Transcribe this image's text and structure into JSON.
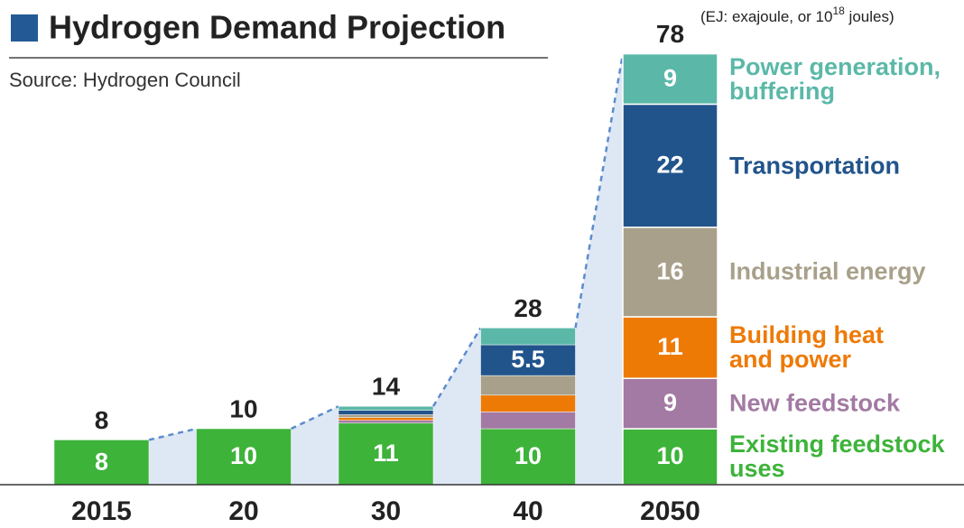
{
  "chart_data": {
    "type": "stacked_bar",
    "title": "Hydrogen Demand Projection",
    "subtitle": "Source: Hydrogen Council",
    "unit_note": {
      "prefix": "(EJ: exajoule, or 10",
      "sup": "18",
      "suffix": " joules)"
    },
    "categories": [
      "2015",
      "20",
      "30",
      "40",
      "2050"
    ],
    "totals": [
      8,
      10,
      14,
      28,
      78
    ],
    "ylim": [
      0,
      80
    ],
    "series": [
      {
        "name": "Existing feedstock uses",
        "color": "#3db33a",
        "values": [
          8,
          10,
          11,
          10,
          10
        ]
      },
      {
        "name": "New feedstock",
        "color": "#a27aa3",
        "values": [
          0,
          0,
          0.5,
          3,
          9
        ]
      },
      {
        "name": "Building heat and power",
        "color": "#ee7a06",
        "values": [
          0,
          0,
          0.5,
          3,
          11
        ]
      },
      {
        "name": "Industrial energy",
        "color": "#a8a08a",
        "values": [
          0,
          0,
          0.5,
          3.5,
          16
        ]
      },
      {
        "name": "Transportation",
        "color": "#22548c",
        "values": [
          0,
          0,
          0.8,
          5.5,
          22
        ]
      },
      {
        "name": "Power generation, buffering",
        "color": "#5bb8a8",
        "values": [
          0,
          0,
          0.7,
          3,
          9
        ]
      }
    ]
  }
}
